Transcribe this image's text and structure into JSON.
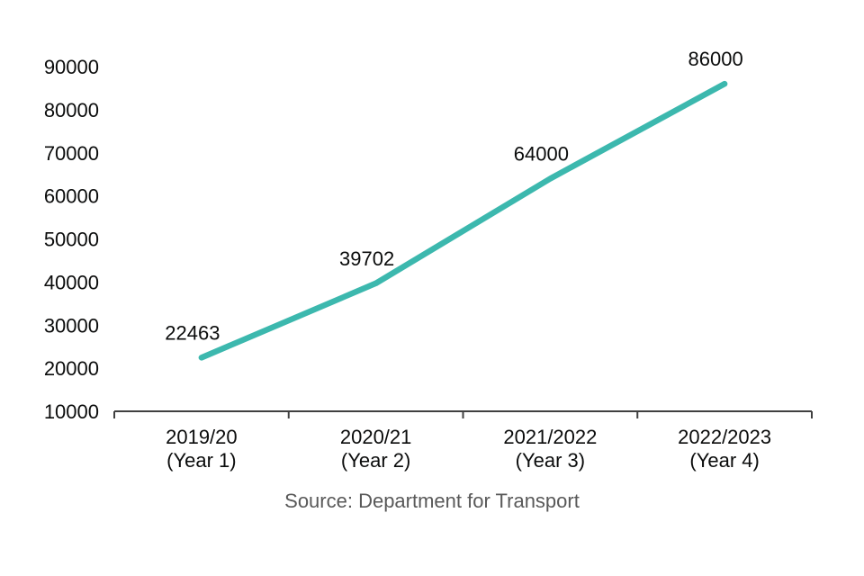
{
  "chart_data": {
    "type": "line",
    "title": "",
    "xlabel": "",
    "ylabel": "",
    "categories": [
      {
        "line1": "2019/20",
        "line2": "(Year 1)"
      },
      {
        "line1": "2020/21",
        "line2": "(Year 2)"
      },
      {
        "line1": "2021/2022",
        "line2": "(Year 3)"
      },
      {
        "line1": "2022/2023",
        "line2": "(Year 4)"
      }
    ],
    "values": [
      22463,
      39702,
      64000,
      86000
    ],
    "value_labels": [
      "22463",
      "39702",
      "64000",
      "86000"
    ],
    "ylim": [
      10000,
      90000
    ],
    "ytick_step": 10000,
    "ytick_labels": [
      "10000",
      "20000",
      "30000",
      "40000",
      "50000",
      "60000",
      "70000",
      "80000",
      "90000"
    ],
    "grid": false,
    "legend": "none",
    "colors": {
      "line": "#3cb8ae",
      "axis": "#404040",
      "text": "#0b0c0c",
      "source_text": "#595959"
    },
    "source": "Source: Department for Transport"
  }
}
